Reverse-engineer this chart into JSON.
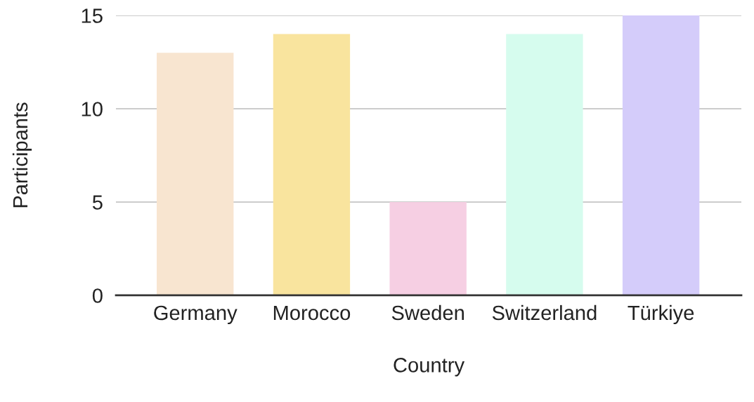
{
  "chart_data": {
    "type": "bar",
    "categories": [
      "Germany",
      "Morocco",
      "Sweden",
      "Switzerland",
      "Türkiye"
    ],
    "values": [
      13,
      14,
      5,
      14,
      15
    ],
    "colors": [
      "#f8e5d0",
      "#f9e49e",
      "#f6cfe3",
      "#d6fcee",
      "#d4ccfa"
    ],
    "xlabel": "Country",
    "ylabel": "Participants",
    "ylim": [
      0,
      15
    ],
    "yticks": [
      0,
      5,
      10,
      15
    ],
    "grid": "y"
  }
}
